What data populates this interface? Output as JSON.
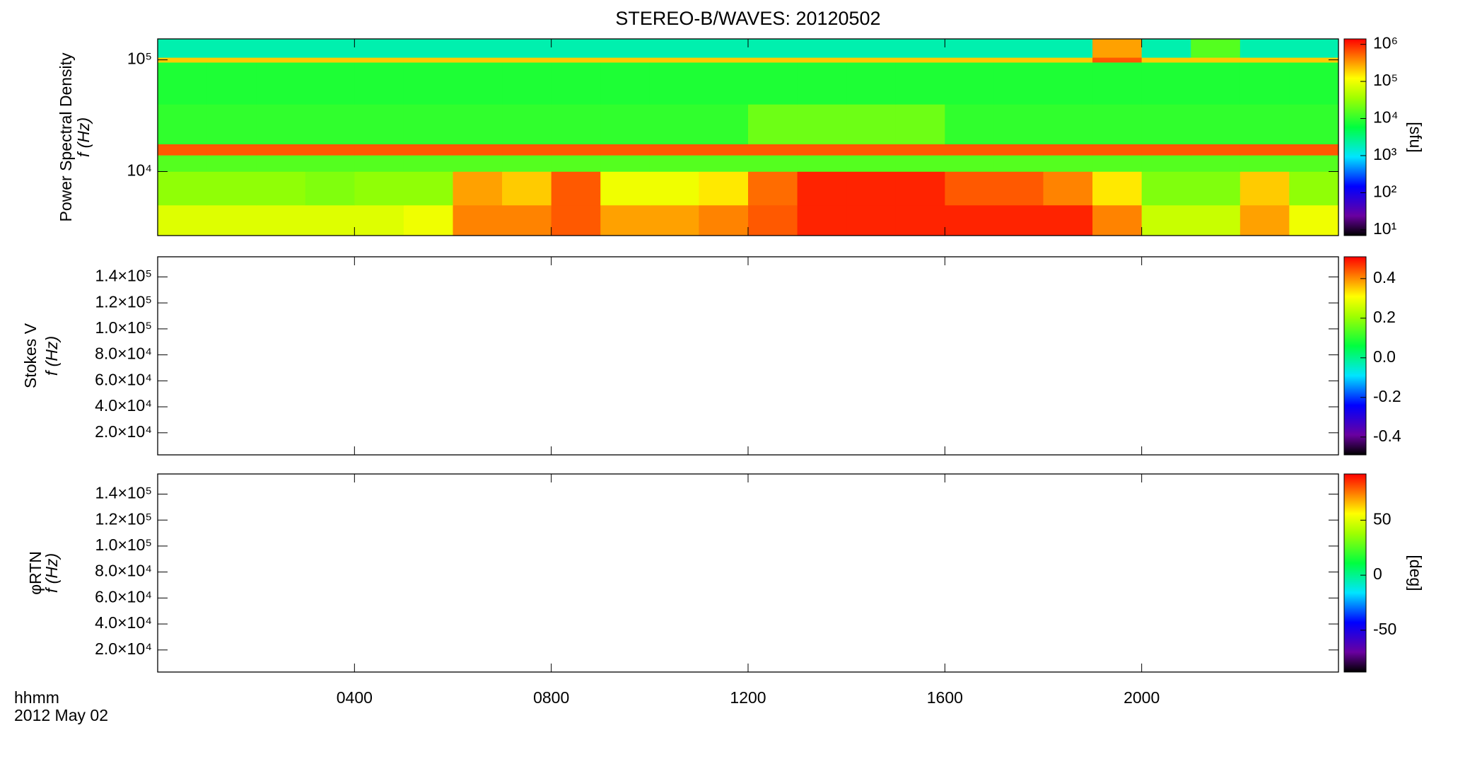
{
  "chart_data": [
    {
      "type": "heatmap",
      "title": "STEREO-B/WAVES: 20120502",
      "ylabel": "Power Spectral Density",
      "ylabel2": "f (Hz)",
      "xlim": [
        0,
        24
      ],
      "xticks": [
        4,
        8,
        12,
        16,
        20
      ],
      "ylim": [
        2670,
        154000
      ],
      "log_y": true,
      "yticks": [
        {
          "value": 10000,
          "label": "10⁴"
        },
        {
          "value": 100000,
          "label": "10⁵"
        }
      ],
      "xbins": [
        0,
        1,
        2,
        3,
        4,
        5,
        6,
        7,
        8,
        9,
        10,
        11,
        12,
        13,
        14,
        15,
        16,
        17,
        18,
        19,
        20,
        21,
        22,
        23,
        24
      ],
      "ybins": [
        2670,
        5000,
        10000,
        14000,
        17600,
        40000,
        95000,
        105000,
        154000
      ],
      "z": [
        [
          80000,
          80000,
          80000,
          80000,
          80000,
          100000,
          400000,
          400000,
          600000,
          300000,
          300000,
          400000,
          600000,
          1000000,
          1000000,
          1000000,
          1000000,
          1000000,
          1000000,
          400000,
          60000,
          60000,
          300000,
          100000
        ],
        [
          30000,
          30000,
          30000,
          25000,
          30000,
          30000,
          300000,
          200000,
          600000,
          100000,
          100000,
          150000,
          500000,
          1000000,
          1000000,
          1000000,
          600000,
          600000,
          400000,
          150000,
          25000,
          25000,
          200000,
          30000
        ],
        [
          15000,
          15000,
          15000,
          15000,
          15000,
          15000,
          15000,
          15000,
          15000,
          15000,
          15000,
          15000,
          15000,
          15000,
          15000,
          15000,
          15000,
          15000,
          15000,
          15000,
          15000,
          15000,
          15000,
          15000
        ],
        [
          600000,
          600000,
          600000,
          600000,
          600000,
          600000,
          600000,
          600000,
          600000,
          600000,
          600000,
          600000,
          600000,
          600000,
          600000,
          600000,
          600000,
          600000,
          600000,
          600000,
          600000,
          600000,
          600000,
          600000
        ],
        [
          10000,
          10000,
          10000,
          10000,
          10000,
          10000,
          10000,
          10000,
          10000,
          10000,
          10000,
          10000,
          20000,
          20000,
          20000,
          20000,
          10000,
          10000,
          10000,
          10000,
          10000,
          10000,
          10000,
          10000
        ],
        [
          8000,
          8000,
          8000,
          8000,
          8000,
          8000,
          8000,
          8000,
          8000,
          8000,
          8000,
          8000,
          8000,
          8000,
          8000,
          8000,
          8000,
          8000,
          8000,
          8000,
          8000,
          8000,
          8000,
          8000
        ],
        [
          200000,
          200000,
          200000,
          200000,
          200000,
          200000,
          200000,
          200000,
          200000,
          200000,
          200000,
          200000,
          200000,
          200000,
          200000,
          200000,
          200000,
          200000,
          200000,
          600000,
          200000,
          200000,
          200000,
          200000
        ],
        [
          2000,
          2000,
          2000,
          2000,
          2000,
          2000,
          2000,
          2000,
          2000,
          2000,
          2000,
          2000,
          2000,
          2000,
          2000,
          2000,
          2000,
          2000,
          2000,
          300000,
          2000,
          15000,
          2000,
          2000
        ]
      ],
      "colorbar": {
        "lim": [
          7,
          1400000
        ],
        "log": true,
        "label": "[sfu]",
        "ticks": [
          {
            "value": 10,
            "label": "10¹"
          },
          {
            "value": 100,
            "label": "10²"
          },
          {
            "value": 1000,
            "label": "10³"
          },
          {
            "value": 10000,
            "label": "10⁴"
          },
          {
            "value": 100000,
            "label": "10⁵"
          },
          {
            "value": 1000000,
            "label": "10⁶"
          }
        ]
      }
    },
    {
      "type": "heatmap",
      "ylabel": "Stokes V",
      "ylabel2": "f (Hz)",
      "xlim": [
        0,
        24
      ],
      "xticks": [
        4,
        8,
        12,
        16,
        20
      ],
      "ylim": [
        3000,
        155500
      ],
      "yticks": [
        {
          "value": 20000,
          "label": "2.0×10⁴"
        },
        {
          "value": 40000,
          "label": "4.0×10⁴"
        },
        {
          "value": 60000,
          "label": "6.0×10⁴"
        },
        {
          "value": 80000,
          "label": "8.0×10⁴"
        },
        {
          "value": 100000,
          "label": "1.0×10⁵"
        },
        {
          "value": 120000,
          "label": "1.2×10⁵"
        },
        {
          "value": 140000,
          "label": "1.4×10⁵"
        }
      ],
      "colorbar": {
        "lim": [
          -0.49,
          0.51
        ],
        "ticks": [
          -0.4,
          -0.2,
          {
            "value": 0,
            "label": "0.0"
          },
          0.2,
          0.4
        ]
      }
    },
    {
      "type": "heatmap",
      "ylabel": "φRTN",
      "ylabel2": "f (Hz)",
      "xlabel": "hhmm",
      "date_label": "2012 May 02",
      "xlim": [
        0,
        24
      ],
      "xticks": [
        {
          "value": 4,
          "label": "0400"
        },
        {
          "value": 8,
          "label": "0800"
        },
        {
          "value": 12,
          "label": "1200"
        },
        {
          "value": 16,
          "label": "1600"
        },
        {
          "value": 20,
          "label": "2000"
        }
      ],
      "ylim": [
        3000,
        155500
      ],
      "yticks": [
        {
          "value": 20000,
          "label": "2.0×10⁴"
        },
        {
          "value": 40000,
          "label": "4.0×10⁴"
        },
        {
          "value": 60000,
          "label": "6.0×10⁴"
        },
        {
          "value": 80000,
          "label": "8.0×10⁴"
        },
        {
          "value": 100000,
          "label": "1.0×10⁵"
        },
        {
          "value": 120000,
          "label": "1.2×10⁵"
        },
        {
          "value": 140000,
          "label": "1.4×10⁵"
        }
      ],
      "colorbar": {
        "lim": [
          -88,
          92
        ],
        "label": "[deg]",
        "ticks": [
          -50,
          0,
          50
        ]
      }
    }
  ]
}
